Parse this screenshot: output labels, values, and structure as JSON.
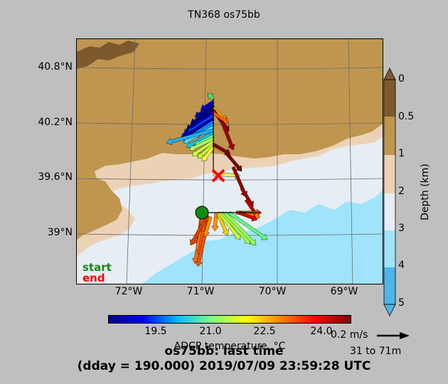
{
  "title": "TN368 os75bb",
  "map": {
    "lat_labels": [
      "40.8°N",
      "40.2°N",
      "39.6°N",
      "39°N"
    ],
    "lon_labels": [
      "72°W",
      "71°W",
      "70°W",
      "69°W"
    ],
    "legend_start": "start",
    "legend_end": "end",
    "colors": {
      "land": "#c0954f",
      "dark_land": "#7d5a2e",
      "shelf": "#ecd2b5",
      "slope": "#e6eef4",
      "deep": "#9fe4fb",
      "start": "#138a13",
      "end": "#ff0000"
    }
  },
  "depth_colorbar": {
    "label": "Depth (km)",
    "ticks": [
      "0",
      "0.5",
      "1",
      "2",
      "3",
      "4",
      "5"
    ]
  },
  "temp_colorbar": {
    "label": "ADCP temperature, °C",
    "ticks": [
      "19.5",
      "21.0",
      "22.5",
      "24.0"
    ]
  },
  "scale": {
    "speed": "0.2 m/s",
    "depth_range": "31 to 71m"
  },
  "footer": {
    "line1": "os75bb: last time",
    "line2": "(dday = 190.000) 2019/07/09 23:59:28 UTC"
  }
}
